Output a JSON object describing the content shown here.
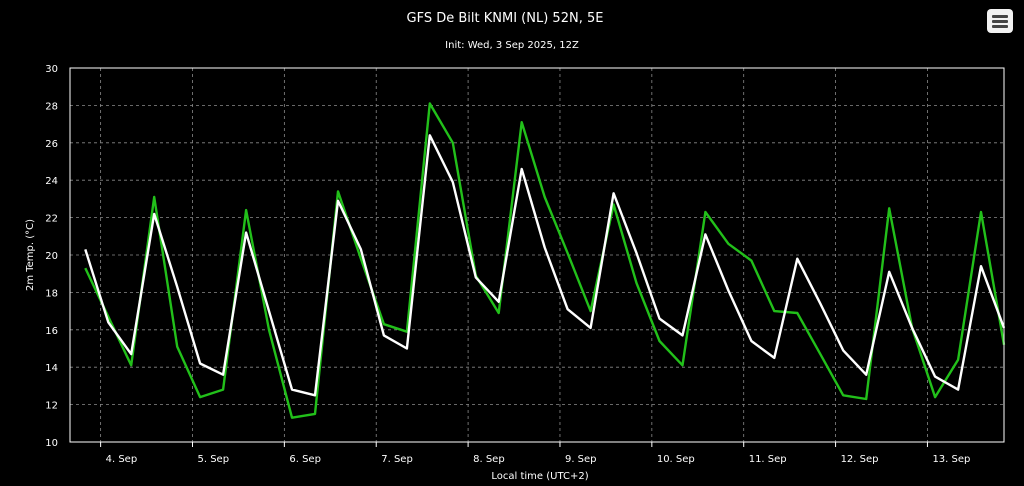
{
  "chart_data": {
    "type": "line",
    "title": "GFS De Bilt KNMI (NL) 52N, 5E",
    "subtitle": "Init: Wed, 3 Sep 2025, 12Z",
    "xlabel": "Local time (UTC+2)",
    "ylabel": "2m Temp. (°C)",
    "ylim": [
      10,
      30
    ],
    "yticks": [
      10,
      12,
      14,
      16,
      18,
      20,
      22,
      24,
      26,
      28,
      30
    ],
    "xticks": [
      "4. Sep",
      "5. Sep",
      "6. Sep",
      "7. Sep",
      "8. Sep",
      "9. Sep",
      "10. Sep",
      "11. Sep",
      "12. Sep",
      "13. Sep"
    ],
    "xlim_hours": [
      -8,
      236
    ],
    "grid": true,
    "series": [
      {
        "color": "#ffffff",
        "x": [
          -4,
          2,
          8,
          14,
          20,
          26,
          32,
          38,
          44,
          50,
          56,
          62,
          68,
          74,
          80,
          86,
          92,
          98,
          104,
          110,
          116,
          122,
          128,
          134,
          140,
          146,
          152,
          158,
          164,
          170,
          176,
          182,
          188,
          194,
          200,
          206,
          212,
          218,
          224,
          230,
          236
        ],
        "y": [
          20.3,
          16.4,
          14.7,
          22.2,
          18.3,
          14.2,
          13.6,
          21.2,
          17.0,
          12.8,
          12.5,
          22.9,
          20.3,
          15.7,
          15.0,
          26.4,
          23.9,
          18.8,
          17.5,
          24.6,
          20.4,
          17.1,
          16.1,
          23.3,
          20.1,
          16.6,
          15.7,
          21.1,
          18.1,
          15.4,
          14.5,
          19.8,
          17.4,
          14.9,
          13.6,
          19.1,
          16.1,
          13.5,
          12.8,
          19.4,
          16.1
        ]
      },
      {
        "color": "#22c01a",
        "x": [
          -4,
          2,
          8,
          14,
          20,
          26,
          32,
          38,
          44,
          50,
          56,
          62,
          68,
          74,
          80,
          86,
          92,
          98,
          104,
          110,
          116,
          122,
          128,
          134,
          140,
          146,
          152,
          158,
          164,
          170,
          176,
          182,
          188,
          194,
          200,
          206,
          212,
          218,
          224,
          230,
          236
        ],
        "y": [
          19.3,
          16.7,
          14.1,
          23.1,
          15.1,
          12.4,
          12.8,
          22.4,
          16.0,
          11.3,
          11.5,
          23.4,
          19.8,
          16.3,
          15.9,
          28.1,
          26.0,
          18.9,
          16.9,
          27.1,
          23.1,
          20.1,
          17.0,
          22.7,
          18.5,
          15.4,
          14.1,
          22.3,
          20.6,
          19.7,
          17.0,
          16.9,
          14.7,
          12.5,
          12.3,
          22.5,
          16.1,
          12.4,
          14.4,
          22.3,
          15.2
        ]
      }
    ]
  }
}
